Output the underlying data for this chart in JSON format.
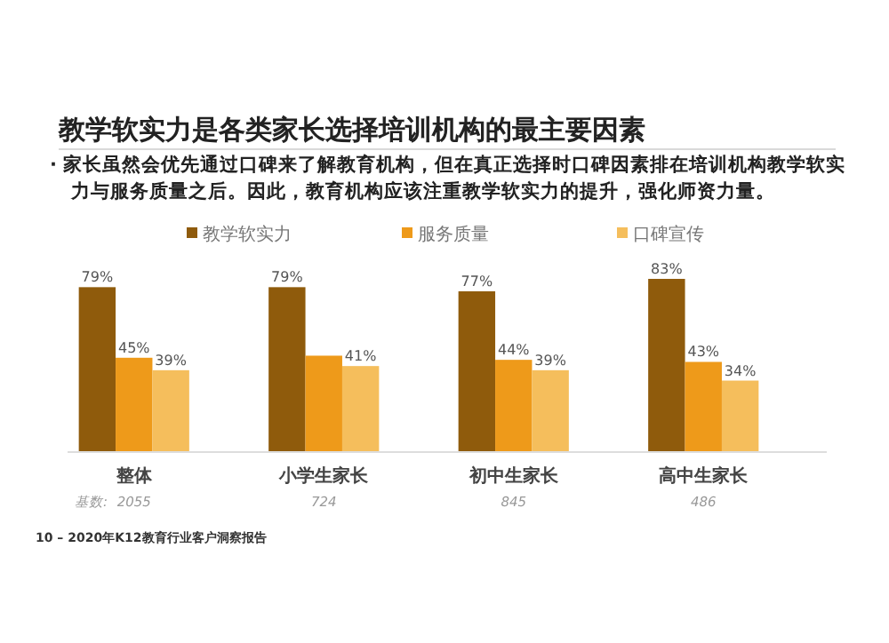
{
  "chart_data": {
    "type": "bar",
    "title": "教学软实力是各类家长选择培训机构的最主要因素",
    "subtitle": "·  家长虽然会优先通过口碑来了解教育机构，但在真正选择时口碑因素排在培训机构教学软实力与服务质量之后。因此，教育机构应该注重教学软实力的提升，强化师资力量。",
    "categories": [
      "整体",
      "小学生家长",
      "初中生家长",
      "高中生家长"
    ],
    "series": [
      {
        "name": "教学软实力",
        "color": "#8f5b0c",
        "values": [
          79,
          79,
          77,
          83
        ],
        "value_labels": [
          "79%",
          "79%",
          "77%",
          "83%"
        ]
      },
      {
        "name": "服务质量",
        "color": "#ee9a1a",
        "values": [
          45,
          46,
          44,
          43
        ],
        "value_labels": [
          "45%",
          null,
          "44%",
          "43%"
        ]
      },
      {
        "name": "口碑宣传",
        "color": "#f5be5c",
        "values": [
          39,
          41,
          39,
          34
        ],
        "value_labels": [
          "39%",
          "41%",
          "39%",
          "34%"
        ]
      }
    ],
    "legend": "top",
    "annotations": [
      "基数:",
      "2055",
      "724",
      "845",
      "486",
      "10 – 2020年K12教育行业客户洞察报告"
    ]
  }
}
